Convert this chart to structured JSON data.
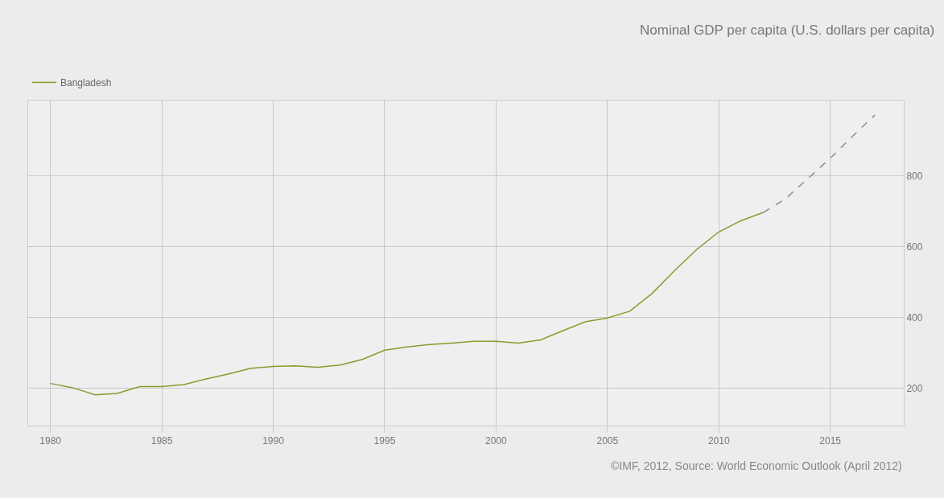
{
  "chart_data": {
    "type": "line",
    "title": "Nominal GDP per capita (U.S. dollars per capita)",
    "annotations": [
      "©IMF, 2012, Source: World Economic Outlook (April 2012)"
    ],
    "series": [
      {
        "name": "Bangladesh",
        "color": "#8a9a2e",
        "line_style": "solid",
        "x": [
          1980,
          1981,
          1982,
          1983,
          1984,
          1985,
          1986,
          1987,
          1988,
          1989,
          1990,
          1991,
          1992,
          1993,
          1994,
          1995,
          1996,
          1997,
          1998,
          1999,
          2000,
          2001,
          2002,
          2003,
          2004,
          2005,
          2006,
          2007,
          2008,
          2009,
          2010,
          2011,
          2012
        ],
        "values": [
          214,
          202,
          182,
          186,
          205,
          205,
          211,
          227,
          241,
          257,
          262,
          264,
          260,
          266,
          282,
          308,
          317,
          324,
          328,
          333,
          333,
          328,
          337,
          363,
          388,
          399,
          418,
          468,
          532,
          592,
          642,
          674,
          697
        ]
      },
      {
        "color": "#8c8c8c",
        "line_style": "dashed",
        "x": [
          2012,
          2013,
          2014,
          2015,
          2016,
          2017
        ],
        "values": [
          697,
          736,
          793,
          850,
          912,
          972
        ]
      }
    ],
    "xlim": [
      1979,
      2018.3
    ],
    "xticks": [
      1980,
      1985,
      1990,
      1995,
      2000,
      2005,
      2010,
      2015
    ],
    "ylim": [
      95,
      1013
    ],
    "yticks": [
      200,
      400,
      600,
      800
    ],
    "grid": true,
    "legend": "top left",
    "marker": "none"
  }
}
